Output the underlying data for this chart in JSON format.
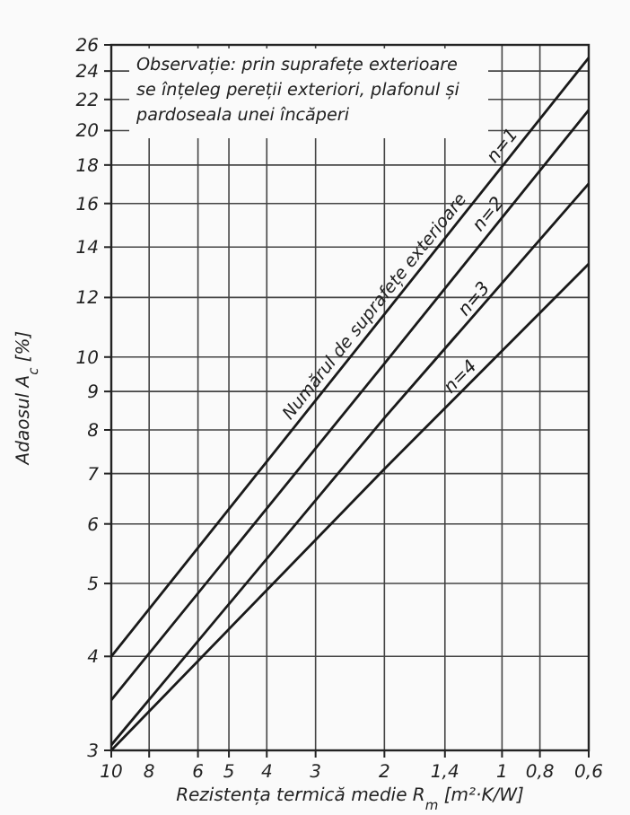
{
  "chart_data": {
    "type": "line",
    "xlabel": "Rezistența termică medie R$_{m}$ [m²·K/W]",
    "ylabel": "Adaosul A$_{c}$ [%]",
    "log": "xy",
    "xlim": [
      10,
      0.6
    ],
    "ylim": [
      3,
      26
    ],
    "xticks": [
      10,
      8,
      6,
      5,
      4,
      3,
      2,
      {
        "value": 1.4,
        "label": "1,4"
      },
      1,
      {
        "value": 0.8,
        "label": "0,8"
      },
      {
        "value": 0.6,
        "label": "0,6"
      }
    ],
    "yticks": [
      3,
      4,
      5,
      6,
      7,
      8,
      9,
      10,
      12,
      14,
      16,
      18,
      20,
      22,
      24,
      26
    ],
    "grid": true,
    "marker": "none",
    "line_style": "solid",
    "x": [
      10,
      2,
      0.6
    ],
    "series": [
      {
        "name": "n=1",
        "color": "#1a1a1a",
        "values": [
          4,
          11.4,
          25
        ]
      },
      {
        "name": "n=2",
        "color": "#1a1a1a",
        "values": [
          3.5,
          9.8,
          21.3
        ]
      },
      {
        "name": "n=3",
        "color": "#1a1a1a",
        "values": [
          3.05,
          8.3,
          17
        ]
      },
      {
        "name": "n=4",
        "color": "#1a1a1a",
        "values": [
          3,
          7.1,
          13.3
        ]
      }
    ],
    "annotations": [
      "Observație: prin suprafețe exterioare",
      "se înțeleg pereții exteriori, plafonul și",
      "pardoseala unei încăperi",
      {
        "text": "Numărul de suprafețe exterioare",
        "x": 2,
        "y": 11.4
      }
    ]
  }
}
